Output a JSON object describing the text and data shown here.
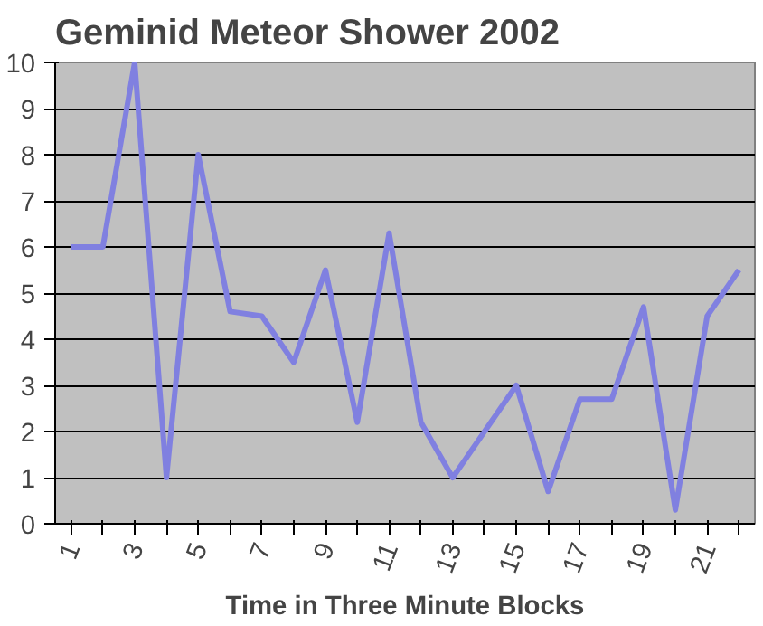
{
  "chart_data": {
    "type": "line",
    "title": "Geminid Meteor Shower 2002",
    "xlabel": "Time in Three Minute Blocks",
    "categories": [
      "1",
      null,
      "3",
      null,
      "5",
      null,
      "7",
      null,
      "9",
      null,
      "11",
      null,
      "13",
      null,
      "15",
      null,
      "17",
      null,
      "19",
      null,
      "21",
      null
    ],
    "series": [
      {
        "color": "#8080e0",
        "values": [
          6,
          6,
          10,
          1,
          8,
          4.6,
          4.5,
          3.5,
          5.5,
          2.2,
          6.3,
          2.2,
          1,
          2,
          3,
          0.7,
          2.7,
          2.7,
          4.7,
          0.3,
          4.5,
          5.5
        ]
      }
    ],
    "ylim": [
      0,
      10
    ],
    "yticks": [
      0,
      1,
      2,
      3,
      4,
      5,
      6,
      7,
      8,
      9,
      10
    ],
    "grid": "y",
    "marker": "none",
    "line_style": "solid"
  }
}
